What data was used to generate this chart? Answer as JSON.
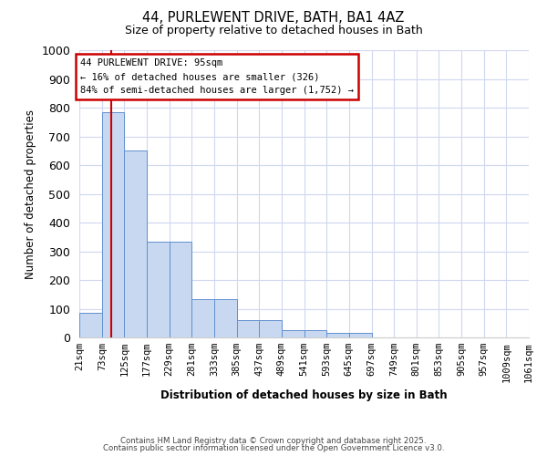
{
  "title1": "44, PURLEWENT DRIVE, BATH, BA1 4AZ",
  "title2": "Size of property relative to detached houses in Bath",
  "xlabel": "Distribution of detached houses by size in Bath",
  "ylabel": "Number of detached properties",
  "bins": [
    21,
    73,
    125,
    177,
    229,
    281,
    333,
    385,
    437,
    489,
    541,
    593,
    645,
    697,
    749,
    801,
    853,
    905,
    957,
    1009,
    1061
  ],
  "counts": [
    85,
    785,
    650,
    335,
    335,
    135,
    135,
    60,
    60,
    25,
    25,
    15,
    15,
    0,
    0,
    0,
    0,
    0,
    0,
    0
  ],
  "bar_color": "#c8d8f0",
  "bar_edge_color": "#6090d0",
  "bg_color": "#ffffff",
  "grid_color": "#d0d8f0",
  "red_line_x": 95,
  "annotation_line1": "44 PURLEWENT DRIVE: 95sqm",
  "annotation_line2": "← 16% of detached houses are smaller (326)",
  "annotation_line3": "84% of semi-detached houses are larger (1,752) →",
  "annotation_box_color": "#cc0000",
  "ylim": [
    0,
    1000
  ],
  "yticks": [
    0,
    100,
    200,
    300,
    400,
    500,
    600,
    700,
    800,
    900,
    1000
  ],
  "footer1": "Contains HM Land Registry data © Crown copyright and database right 2025.",
  "footer2": "Contains public sector information licensed under the Open Government Licence v3.0."
}
